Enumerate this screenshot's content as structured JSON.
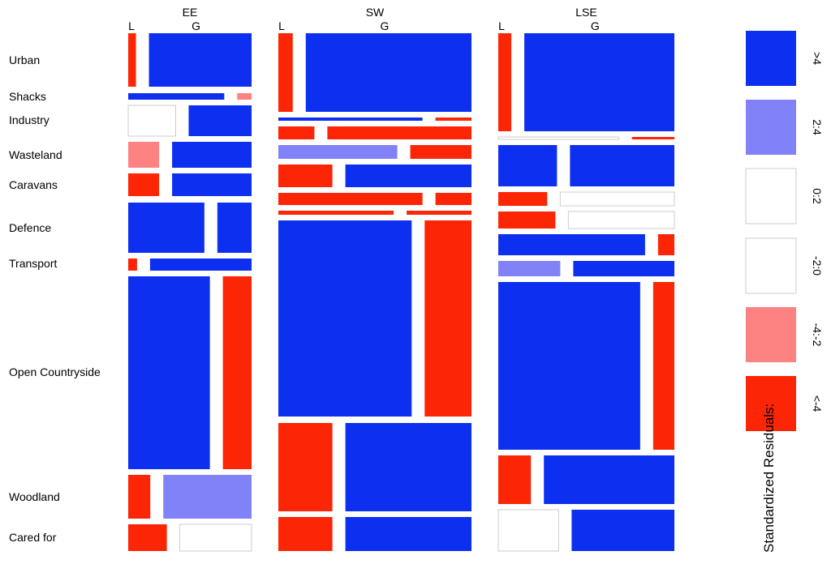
{
  "chart_data": {
    "type": "mosaic",
    "regions": [
      "EE",
      "SW",
      "LSE"
    ],
    "sublabels": [
      "L",
      "G"
    ],
    "categories": [
      "Urban",
      "Shacks",
      "Industry",
      "Wasteland",
      "Caravans",
      "Defence",
      "Transport",
      "Open Countryside",
      "Woodland",
      "Cared for"
    ],
    "legend": {
      "title": "Standardized Residuals:",
      "levels": [
        {
          "label": ">4",
          "color": "#0d2ff0"
        },
        {
          "label": "2:4",
          "color": "#8181f8"
        },
        {
          "label": "0:2",
          "color": "#ffffff"
        },
        {
          "label": "-2:0",
          "color": "#ffffff"
        },
        {
          "label": "-4:-2",
          "color": "#fd8282"
        },
        {
          "label": "<-4",
          "color": "#fc2505"
        }
      ]
    },
    "colors": {
      "strong_pos": "#0d2ff0",
      "pos": "#8181f8",
      "neutral": "#ffffff",
      "neg": "#fd8282",
      "strong_neg": "#fc2505"
    },
    "cells": {
      "EE": [
        {
          "category": "Urban",
          "L": 0.07,
          "G": 0.93,
          "L_res": "<-4",
          "G_res": ">4"
        },
        {
          "category": "Shacks",
          "L": 0.87,
          "G": 0.13,
          "L_res": ">4",
          "G_res": "-4:-2"
        },
        {
          "category": "Industry",
          "L": 0.43,
          "G": 0.57,
          "L_res": "0:2",
          "G_res": ">4"
        },
        {
          "category": "Wasteland",
          "L": 0.28,
          "G": 0.72,
          "L_res": "-4:-2",
          "G_res": ">4"
        },
        {
          "category": "Caravans",
          "L": 0.28,
          "G": 0.72,
          "L_res": "<-4",
          "G_res": ">4"
        },
        {
          "category": "Defence",
          "L": 0.69,
          "G": 0.31,
          "L_res": ">4",
          "G_res": ">4"
        },
        {
          "category": "Transport",
          "L": 0.08,
          "G": 0.92,
          "L_res": "<-4",
          "G_res": ">4"
        },
        {
          "category": "Open Countryside",
          "L": 0.74,
          "G": 0.26,
          "L_res": ">4",
          "G_res": "<-4"
        },
        {
          "category": "Woodland",
          "L": 0.2,
          "G": 0.8,
          "L_res": "<-4",
          "G_res": "2:4"
        },
        {
          "category": "Cared for",
          "L": 0.35,
          "G": 0.65,
          "L_res": "<-4",
          "G_res": "0:2"
        }
      ],
      "SW": [
        {
          "category": "Urban",
          "L": 0.08,
          "G": 0.92,
          "L_res": "<-4",
          "G_res": ">4"
        },
        {
          "category": "Shacks",
          "L": 0.8,
          "G": 0.2,
          "L_res": ">4",
          "G_res": "<-4"
        },
        {
          "category": "Industry",
          "L": 0.2,
          "G": 0.8,
          "L_res": "<-4",
          "G_res": "<-4"
        },
        {
          "category": "Wasteland",
          "L": 0.66,
          "G": 0.34,
          "L_res": "2:4",
          "G_res": "<-4"
        },
        {
          "category": "Caravans",
          "L": 0.3,
          "G": 0.7,
          "L_res": "<-4",
          "G_res": ">4"
        },
        {
          "category": "Defence",
          "L": 0.8,
          "G": 0.2,
          "L_res": "<-4",
          "G_res": "<-4"
        },
        {
          "category": "Transport",
          "L": 0.64,
          "G": 0.36,
          "L_res": "<-4",
          "G_res": "<-4"
        },
        {
          "category": "Open Countryside",
          "L": 0.74,
          "G": 0.26,
          "L_res": ">4",
          "G_res": "<-4"
        },
        {
          "category": "Woodland",
          "L": 0.3,
          "G": 0.7,
          "L_res": "<-4",
          "G_res": ">4"
        },
        {
          "category": "Cared for",
          "L": 0.3,
          "G": 0.7,
          "L_res": "<-4",
          "G_res": ">4"
        }
      ],
      "LSE": [
        {
          "category": "Urban",
          "L": 0.08,
          "G": 0.92,
          "L_res": "<-4",
          "G_res": ">4"
        },
        {
          "category": "Shacks",
          "L": 0.74,
          "G": 0.26,
          "L_res": "0:2",
          "G_res": "<-4"
        },
        {
          "category": "Industry",
          "L": 0.36,
          "G": 0.64,
          "L_res": ">4",
          "G_res": ">4"
        },
        {
          "category": "Wasteland",
          "L": 0.3,
          "G": 0.7,
          "L_res": "<-4",
          "G_res": "0:2"
        },
        {
          "category": "Caravans",
          "L": 0.35,
          "G": 0.65,
          "L_res": "<-4",
          "G_res": "0:2"
        },
        {
          "category": "Defence",
          "L": 0.9,
          "G": 0.1,
          "L_res": ">4",
          "G_res": "<-4"
        },
        {
          "category": "Transport",
          "L": 0.38,
          "G": 0.62,
          "L_res": "2:4",
          "G_res": ">4"
        },
        {
          "category": "Open Countryside",
          "L": 0.87,
          "G": 0.13,
          "L_res": ">4",
          "G_res": "<-4"
        },
        {
          "category": "Woodland",
          "L": 0.2,
          "G": 0.8,
          "L_res": "<-4",
          "G_res": ">4"
        },
        {
          "category": "Cared for",
          "L": 0.37,
          "G": 0.63,
          "L_res": "0:2",
          "G_res": ">4"
        }
      ]
    }
  }
}
